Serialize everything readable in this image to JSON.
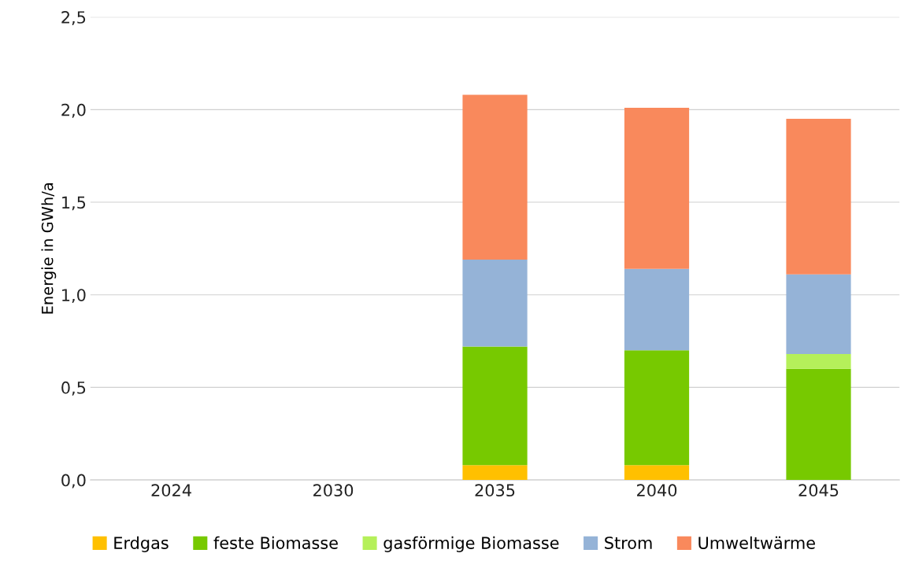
{
  "chart_data": {
    "type": "bar",
    "stacked": true,
    "ylabel": "Energie in GWh/a",
    "categories": [
      "2024",
      "2030",
      "2035",
      "2040",
      "2045"
    ],
    "series": [
      {
        "name": "Erdgas",
        "color": "#ffc000",
        "values": [
          null,
          null,
          0.08,
          0.08,
          0
        ]
      },
      {
        "name": "feste Biomasse",
        "color": "#77c900",
        "values": [
          null,
          null,
          0.64,
          0.62,
          0.6
        ]
      },
      {
        "name": "gasförmige Biomasse",
        "color": "#b5f05a",
        "values": [
          null,
          null,
          0,
          0,
          0.08
        ]
      },
      {
        "name": "Strom",
        "color": "#95b3d7",
        "values": [
          null,
          null,
          0.47,
          0.44,
          0.43
        ]
      },
      {
        "name": "Umweltwärme",
        "color": "#f9895c",
        "values": [
          null,
          null,
          0.89,
          0.87,
          0.84
        ]
      }
    ],
    "ylim": [
      0,
      2.5
    ],
    "yticks": [
      {
        "value": 0,
        "label": "0,0"
      },
      {
        "value": 0.5,
        "label": "0,5"
      },
      {
        "value": 1,
        "label": "1,0"
      },
      {
        "value": 1.5,
        "label": "1,5"
      },
      {
        "value": 2,
        "label": "2,0"
      },
      {
        "value": 2.5,
        "label": "2,5"
      }
    ],
    "grid": "y",
    "legend": "bottom"
  }
}
